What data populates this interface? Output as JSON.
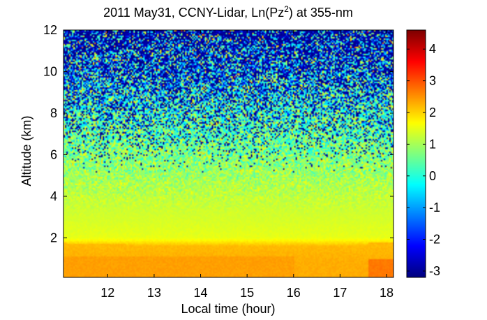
{
  "chart_data": {
    "type": "heatmap",
    "title": {
      "prefix": "2011 May31, CCNY-Lidar, Ln(Pz",
      "superscript": "2",
      "suffix": ") at 355-nm"
    },
    "xlabel": "Local time (hour)",
    "ylabel": "Altitude (km)",
    "xlim": [
      11.05,
      18.15
    ],
    "ylim": [
      0.1,
      12
    ],
    "xticks": [
      "12",
      "13",
      "14",
      "15",
      "16",
      "17",
      "18"
    ],
    "yticks": [
      "2",
      "4",
      "6",
      "8",
      "10",
      "12"
    ],
    "colorbar": {
      "range": [
        -3.2,
        4.6
      ],
      "ticks": [
        "-3",
        "-2",
        "-1",
        "0",
        "1",
        "2",
        "3",
        "4"
      ],
      "colormap": "jet"
    },
    "profile": {
      "altitude_km": [
        0.1,
        0.8,
        1.6,
        2.0,
        3.0,
        4.0,
        5.0,
        6.0,
        7.0,
        8.0,
        9.0,
        10.0,
        12.0
      ],
      "value": [
        2.3,
        2.3,
        2.2,
        1.5,
        1.35,
        1.2,
        0.95,
        0.7,
        0.4,
        0.15,
        -0.2,
        -0.5,
        -0.8
      ]
    },
    "boundary_layer_top_km": [
      {
        "time": 11.05,
        "altitude_km": 1.75
      },
      {
        "time": 13.0,
        "altitude_km": 1.65
      },
      {
        "time": 15.9,
        "altitude_km": 1.55
      },
      {
        "time": 16.0,
        "altitude_km": 1.35
      },
      {
        "time": 17.55,
        "altitude_km": 1.45
      },
      {
        "time": 17.6,
        "altitude_km": 1.75
      },
      {
        "time": 18.15,
        "altitude_km": 1.75
      }
    ],
    "bright_near_surface_segments": [
      {
        "time_start": 11.05,
        "time_end": 16.0,
        "altitude_top_km": 1.1,
        "value": 2.4
      },
      {
        "time_start": 17.6,
        "time_end": 18.15,
        "altitude_top_km": 1.0,
        "value": 2.7
      }
    ]
  }
}
